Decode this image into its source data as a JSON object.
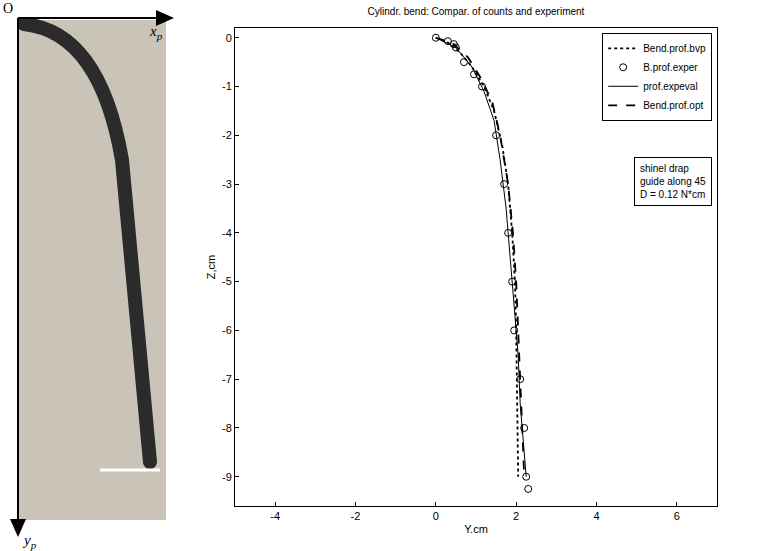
{
  "chart_data": {
    "type": "line",
    "title": "Cylindr. bend: Compar. of counts and experiment",
    "x_label": "Y.cm",
    "y_label": "Z,cm",
    "xlim": [
      -5,
      7
    ],
    "ylim": [
      -9.6,
      0.2
    ],
    "xticks": [
      -4,
      -2,
      0,
      2,
      4,
      6
    ],
    "yticks": [
      0,
      -1,
      -2,
      -3,
      -4,
      -5,
      -6,
      -7,
      -8,
      -9
    ],
    "grid": false,
    "legend": "top right",
    "series": [
      {
        "name": "Bend.prof.bvp",
        "color": "#000000",
        "type": "line",
        "line_style": "dot",
        "x": [
          0,
          0.3,
          0.6,
          0.9,
          1.2,
          1.45,
          1.65,
          1.8,
          1.9,
          1.97,
          2.0,
          2.02,
          2.04,
          2.05
        ],
        "values": [
          0,
          -0.1,
          -0.3,
          -0.6,
          -1.0,
          -1.5,
          -2.2,
          -3,
          -4,
          -5,
          -6,
          -7,
          -8,
          -9
        ]
      },
      {
        "name": "B.prof.exper",
        "color": "#000000",
        "type": "scatter",
        "marker": "circle-open",
        "x": [
          0,
          0.3,
          0.45,
          0.5,
          0.7,
          0.95,
          1.15,
          1.5,
          1.7,
          1.8,
          1.9,
          1.95,
          2.1,
          2.2,
          2.25,
          2.3
        ],
        "values": [
          0,
          -0.07,
          -0.13,
          -0.2,
          -0.5,
          -0.75,
          -1.0,
          -2,
          -3,
          -4,
          -5,
          -6,
          -7,
          -8,
          -9,
          -9.25
        ]
      },
      {
        "name": "prof.expeval",
        "color": "#000000",
        "type": "line",
        "line_style": "solid",
        "x": [
          0,
          0.5,
          0.9,
          1.2,
          1.45,
          1.6,
          1.75,
          1.85,
          1.95,
          2.05,
          2.1,
          2.2,
          2.25
        ],
        "values": [
          0,
          -0.2,
          -0.6,
          -1.1,
          -1.7,
          -2.5,
          -3.5,
          -4.5,
          -5.5,
          -6.5,
          -7.5,
          -8.5,
          -9
        ]
      },
      {
        "name": "Bend.prof.opt",
        "color": "#000000",
        "type": "line",
        "line_style": "dash",
        "x": [
          0,
          0.4,
          0.8,
          1.1,
          1.4,
          1.6,
          1.8,
          1.92,
          2.0,
          2.05,
          2.1,
          2.15,
          2.2
        ],
        "values": [
          0,
          -0.1,
          -0.4,
          -0.8,
          -1.3,
          -2,
          -3,
          -4,
          -5,
          -6,
          -7,
          -8,
          -9
        ]
      }
    ],
    "annotation": [
      "shinel drap",
      "guide along 45",
      "D = 0.12 N*cm"
    ]
  },
  "photo": {
    "origin": "O",
    "x_axis": {
      "text": "x",
      "sub": "p"
    },
    "y_axis": {
      "text": "y",
      "sub": "p"
    }
  }
}
